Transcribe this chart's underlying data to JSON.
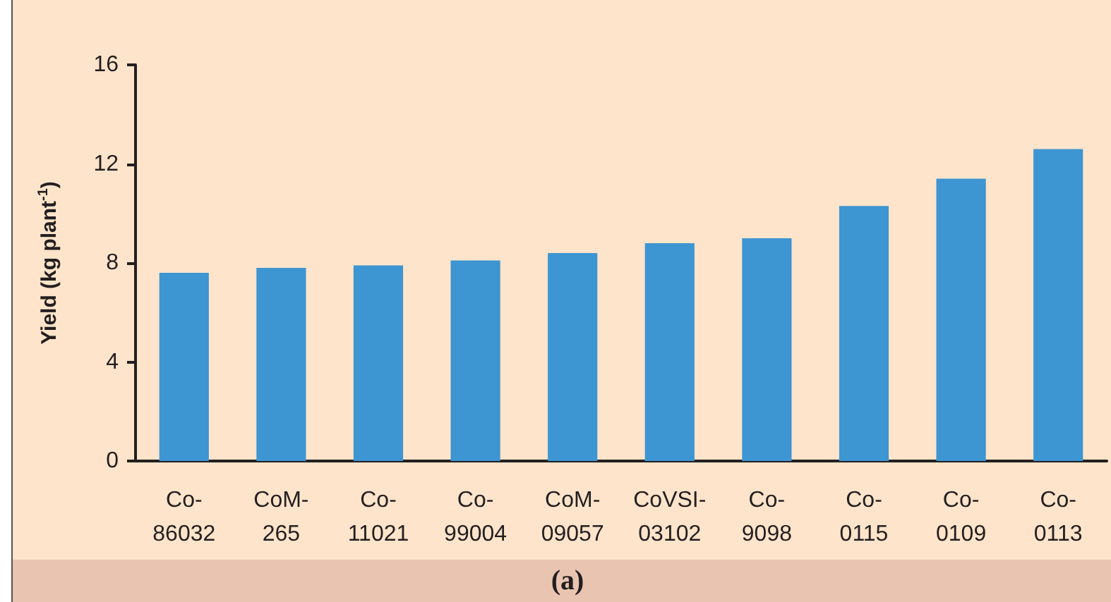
{
  "chart_data": {
    "type": "bar",
    "ylabel": "Yield (kg plant$^{-1}$)",
    "categories": [
      "Co-86032",
      "CoM-265",
      "Co-11021",
      "Co-99004",
      "CoM-09057",
      "CoVSI-03102",
      "Co-9098",
      "Co-0115",
      "Co-0109",
      "Co-0113"
    ],
    "values": [
      7.6,
      7.8,
      7.9,
      8.1,
      8.4,
      8.8,
      9.0,
      10.3,
      11.4,
      12.6
    ],
    "color": "#3d95d2",
    "ylim": [
      0,
      16
    ],
    "yticks": [
      0,
      4,
      8,
      12,
      16
    ],
    "annotations": [
      "(a)"
    ]
  }
}
